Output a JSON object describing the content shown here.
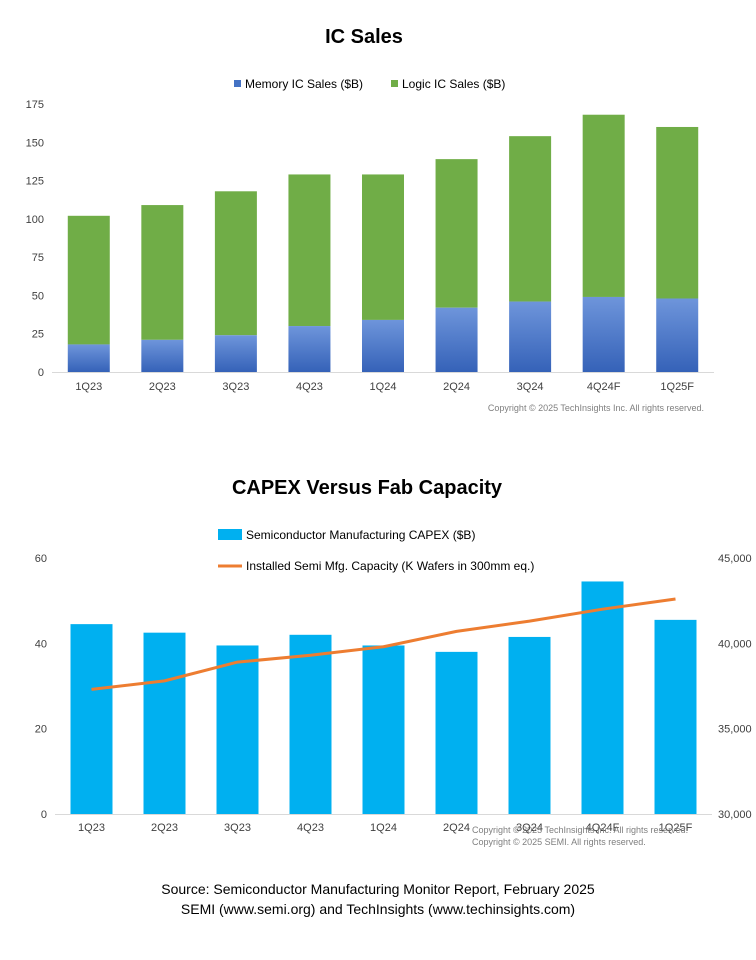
{
  "colors": {
    "memory": "#4472C4",
    "logic": "#70AD47",
    "capex": "#00B0F0",
    "capacity": "#ED7D31",
    "axis": "#D9D9D9",
    "tick_text": "#404040",
    "copyright": "#7F7F7F"
  },
  "chart_data": [
    {
      "type": "bar",
      "stacked": true,
      "title": "IC Sales",
      "categories": [
        "1Q23",
        "2Q23",
        "3Q23",
        "4Q23",
        "1Q24",
        "2Q24",
        "3Q24",
        "4Q24F",
        "1Q25F"
      ],
      "series": [
        {
          "name": "Memory IC Sales ($B)",
          "color": "#4472C4",
          "values": [
            18,
            21,
            24,
            30,
            34,
            42,
            46,
            49,
            48
          ]
        },
        {
          "name": "Logic IC Sales ($B)",
          "color": "#70AD47",
          "values": [
            84,
            88,
            94,
            99,
            95,
            97,
            108,
            119,
            112
          ]
        }
      ],
      "ylim": [
        0,
        175
      ],
      "yticks": [
        0,
        25,
        50,
        75,
        100,
        125,
        150,
        175
      ],
      "grid": false,
      "legend": "top",
      "copyright": "Copyright © 2025 TechInsights Inc.  All rights reserved."
    },
    {
      "type": "bar+line",
      "title": "CAPEX Versus Fab Capacity",
      "categories": [
        "1Q23",
        "2Q23",
        "3Q23",
        "4Q23",
        "1Q24",
        "2Q24",
        "3Q24",
        "4Q24F",
        "1Q25F"
      ],
      "series": [
        {
          "name": "Semiconductor Manufacturing CAPEX ($B)",
          "type": "bar",
          "axis": "left",
          "color": "#00B0F0",
          "values": [
            44.5,
            42.5,
            39.5,
            42,
            39.5,
            38,
            41.5,
            54.5,
            45.5
          ]
        },
        {
          "name": "Installed Semi Mfg. Capacity (K Wafers in 300mm eq.)",
          "type": "line",
          "axis": "right",
          "color": "#ED7D31",
          "values": [
            37300,
            37800,
            38900,
            39300,
            39800,
            40700,
            41300,
            42000,
            42600
          ]
        }
      ],
      "ylim_left": [
        0,
        60
      ],
      "yticks_left": [
        0,
        20,
        40,
        60
      ],
      "ylim_right": [
        30000,
        45000
      ],
      "yticks_right": [
        "30,000",
        "35,000",
        "40,000",
        "45,000"
      ],
      "grid": false,
      "legend": "top",
      "copyright": [
        "Copyright © 2025 TechInsights Inc.  All rights reserved.",
        "Copyright © 2025 SEMI.  All rights reserved."
      ]
    }
  ],
  "source": {
    "line1": "Source: Semiconductor Manufacturing Monitor Report, February 2025",
    "line2": "SEMI (www.semi.org) and TechInsights (www.techinsights.com)"
  }
}
